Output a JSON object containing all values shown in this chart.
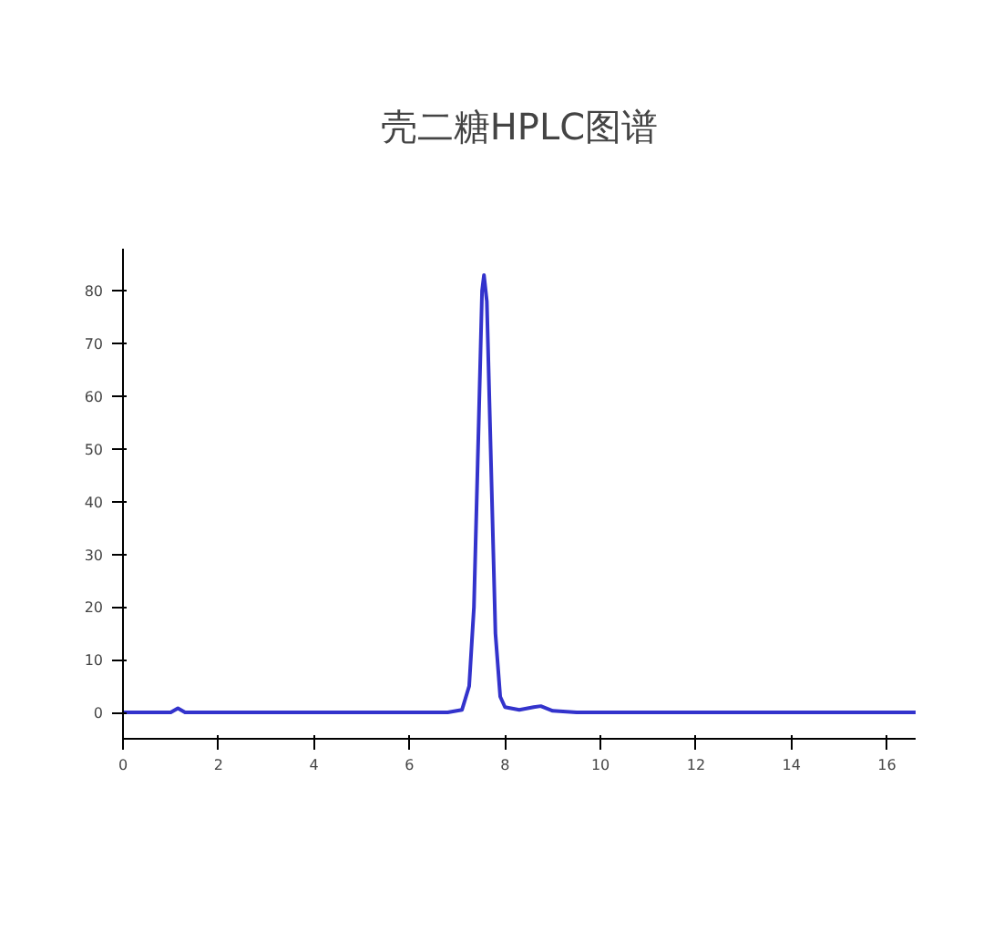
{
  "chart_data": {
    "type": "line",
    "title": "壳二糖HPLC图谱",
    "x": [
      0,
      1.0,
      1.15,
      1.3,
      6.8,
      7.1,
      7.25,
      7.35,
      7.45,
      7.52,
      7.56,
      7.62,
      7.7,
      7.8,
      7.9,
      8.0,
      8.3,
      8.6,
      8.75,
      9.0,
      9.5,
      16.6
    ],
    "series": [
      {
        "color": "#3333cc",
        "values": [
          0,
          0,
          0.8,
          0,
          0,
          0.5,
          5,
          20,
          55,
          80,
          83,
          78,
          50,
          15,
          3,
          1,
          0.5,
          1,
          1.2,
          0.3,
          0,
          0
        ]
      }
    ],
    "xlim": [
      0,
      16.6
    ],
    "ylim": [
      -5,
      88
    ],
    "xticks": [
      0,
      2,
      4,
      6,
      8,
      10,
      12,
      14,
      16
    ],
    "yticks": [
      0,
      10,
      20,
      30,
      40,
      50,
      60,
      70,
      80
    ],
    "grid": false,
    "marker": "none",
    "line_style": "solid"
  }
}
